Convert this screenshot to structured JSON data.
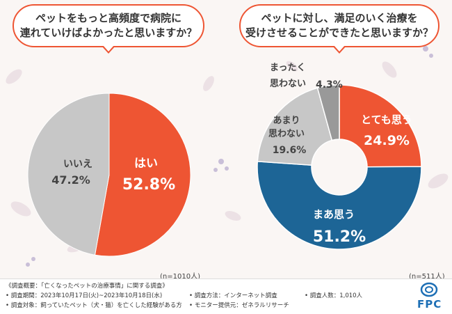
{
  "questions": {
    "left": {
      "line1": "ペットをもっと高頻度で病院に",
      "line2": "連れていけばよかったと思いますか？"
    },
    "right": {
      "line1": "ペットに対し、満足のいく治療を",
      "line2": "受けさせることができたと思いますか？"
    }
  },
  "colors": {
    "orange": "#ee5533",
    "blue": "#1d6596",
    "gray": "#bdbdbd",
    "darkgray": "#999999"
  },
  "chart_data": [
    {
      "type": "pie",
      "title": "ペットをもっと高頻度で病院に連れていけばよかったと思いますか？",
      "sample": "(n=1010人)",
      "slices": [
        {
          "label": "はい",
          "value": 52.8,
          "value_text": "52.8%",
          "color": "#ee5533"
        },
        {
          "label": "いいえ",
          "value": 47.2,
          "value_text": "47.2%",
          "color": "#c7c7c7"
        }
      ]
    },
    {
      "type": "pie",
      "title": "ペットに対し、満足のいく治療を受けさせることができたと思いますか？",
      "sample": "(n=511人)",
      "donut": true,
      "slices": [
        {
          "label": "とても思う",
          "value": 24.9,
          "value_text": "24.9%",
          "color": "#ee5533"
        },
        {
          "label": "まあ思う",
          "value": 51.2,
          "value_text": "51.2%",
          "color": "#1d6596"
        },
        {
          "label": "あまり思わない",
          "label_lines": [
            "あまり",
            "思わない"
          ],
          "value": 19.6,
          "value_text": "19.6%",
          "color": "#c7c7c7"
        },
        {
          "label": "まったく思わない",
          "label_lines": [
            "まったく",
            "思わない"
          ],
          "value": 4.3,
          "value_text": "4.3%",
          "color": "#999999"
        }
      ]
    }
  ],
  "footer": {
    "outline": "《調査概要：「亡くなったペットの治療事情」に関する調査》",
    "period": "• 調査期間：2023年10月17日(火)~2023年10月18日(水)",
    "target": "• 調査対象：飼っていたペット（犬・猫）を亡くした経験がある方",
    "method": "• 調査方法：インターネット調査",
    "provider": "• モニター提供元：ゼネラルリサーチ",
    "count": "• 調査人数：1,010人",
    "logo": "FPC"
  }
}
